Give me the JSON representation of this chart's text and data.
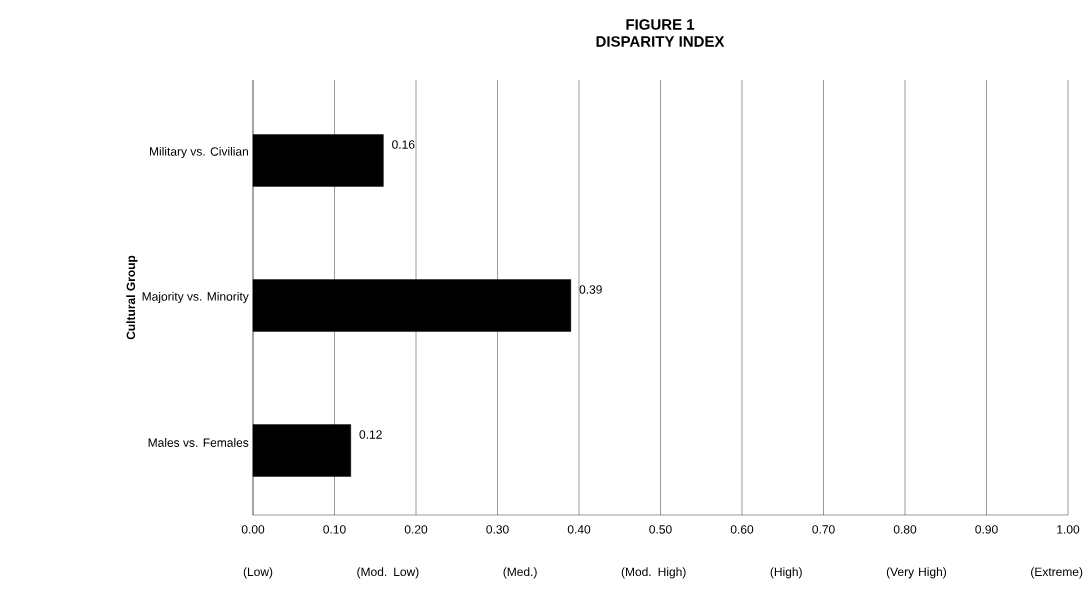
{
  "chart_data": {
    "type": "bar",
    "orientation": "horizontal",
    "title": "FIGURE 1",
    "subtitle": "DISPARITY INDEX",
    "ylabel": "Cultural Group",
    "categories": [
      "Military vs. Civilian",
      "Majority vs. Minority",
      "Males vs. Females"
    ],
    "values": [
      0.16,
      0.39,
      0.12
    ],
    "color": "#000000",
    "data_labels": true,
    "grid": "x",
    "xlim": [
      0,
      1
    ],
    "xticks": [
      {
        "value": 0,
        "label": "0.00"
      },
      {
        "value": 0.1,
        "label": "0.10"
      },
      {
        "value": 0.2,
        "label": "0.20"
      },
      {
        "value": 0.3,
        "label": "0.30"
      },
      {
        "value": 0.4,
        "label": "0.40"
      },
      {
        "value": 0.5,
        "label": "0.50"
      },
      {
        "value": 0.6,
        "label": "0.60"
      },
      {
        "value": 0.7,
        "label": "0.70"
      },
      {
        "value": 0.8,
        "label": "0.80"
      },
      {
        "value": 0.9,
        "label": "0.90"
      },
      {
        "value": 1,
        "label": "1.00"
      }
    ],
    "annotations": [
      "(Low)",
      "(Mod. Low)",
      "(Med.)",
      "(Mod. High)",
      "(High)",
      "(Very High)",
      "(Extreme)"
    ]
  }
}
